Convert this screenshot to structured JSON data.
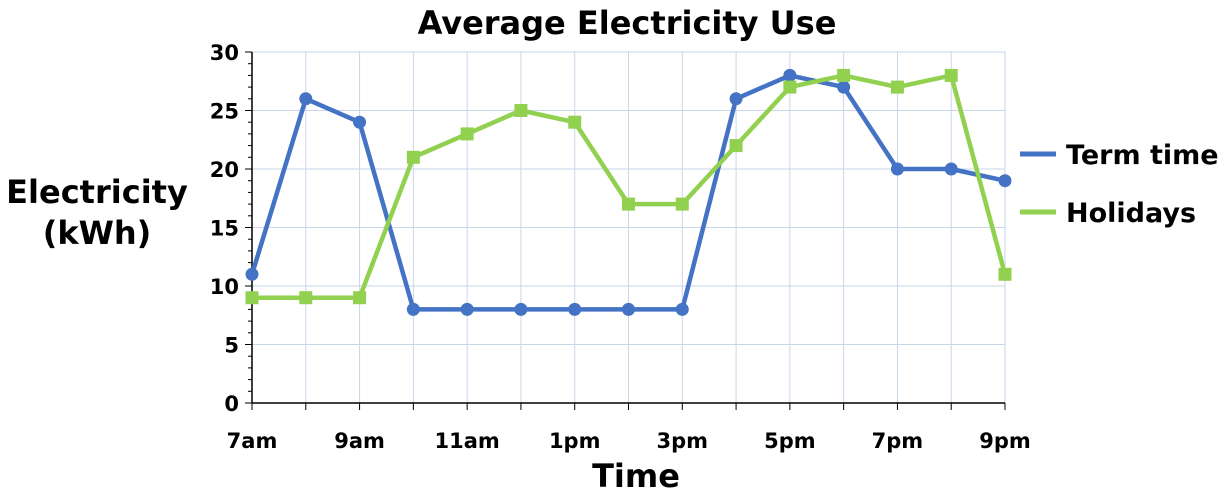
{
  "chart_data": {
    "type": "line",
    "title": "Average Electricity Use",
    "xlabel": "Time",
    "ylabel_lines": [
      "Electricity",
      "(kWh)"
    ],
    "x": [
      "7am",
      "8am",
      "9am",
      "10am",
      "11am",
      "12pm",
      "1pm",
      "2pm",
      "3pm",
      "4pm",
      "5pm",
      "6pm",
      "7pm",
      "8pm",
      "9pm"
    ],
    "x_tick_labels": [
      "7am",
      "",
      "9am",
      "",
      "11am",
      "",
      "1pm",
      "",
      "3pm",
      "",
      "5pm",
      "",
      "7pm",
      "",
      "9pm"
    ],
    "ylim": [
      0,
      30
    ],
    "y_ticks": [
      0,
      5,
      10,
      15,
      20,
      25,
      30
    ],
    "y_minor_step": 1,
    "grid": true,
    "legend_position": "right",
    "series": [
      {
        "name": "Term time",
        "color": "#4472C4",
        "marker": "circle",
        "values": [
          11,
          26,
          24,
          8,
          8,
          8,
          8,
          8,
          8,
          26,
          28,
          27,
          20,
          20,
          19
        ]
      },
      {
        "name": "Holidays",
        "color": "#92D050",
        "marker": "square",
        "values": [
          9,
          9,
          9,
          21,
          23,
          25,
          24,
          17,
          17,
          22,
          27,
          28,
          27,
          28,
          11
        ]
      }
    ]
  }
}
